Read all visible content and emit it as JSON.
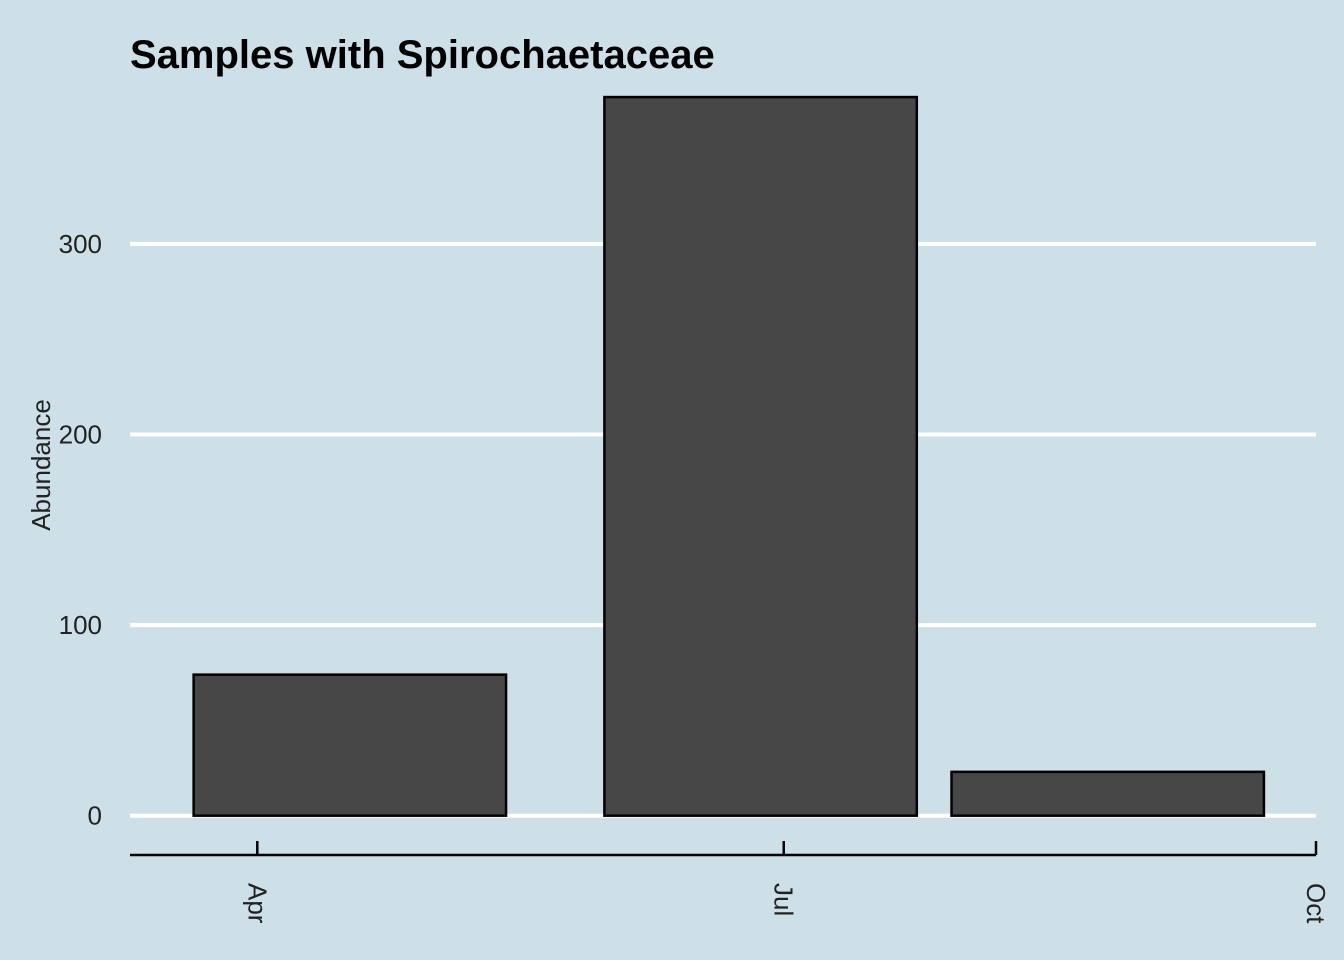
{
  "chart_data": {
    "type": "bar",
    "title": "Samples with Spirochaetaceae",
    "xlabel": "",
    "ylabel": "Abundance",
    "x_axis": "date",
    "xlim": [
      "2023-03-10",
      "2023-10-01"
    ],
    "ylim": [
      -18,
      387
    ],
    "y_ticks": [
      0,
      100,
      200,
      300
    ],
    "x_ticks": [
      {
        "label": "Apr",
        "date": "2023-04-01"
      },
      {
        "label": "Jul",
        "date": "2023-07-01"
      },
      {
        "label": "Oct",
        "date": "2023-10-01"
      }
    ],
    "bars": [
      {
        "start": "2023-03-21",
        "end": "2023-05-14",
        "value": 74
      },
      {
        "start": "2023-05-31",
        "end": "2023-07-24",
        "value": 377
      },
      {
        "start": "2023-07-30",
        "end": "2023-09-22",
        "value": 23
      }
    ],
    "grid": "horizontal",
    "background": "#cde0e8",
    "bar_color": "#474747",
    "bar_edge_color": "#000000",
    "gridline_color": "#ffffff"
  }
}
